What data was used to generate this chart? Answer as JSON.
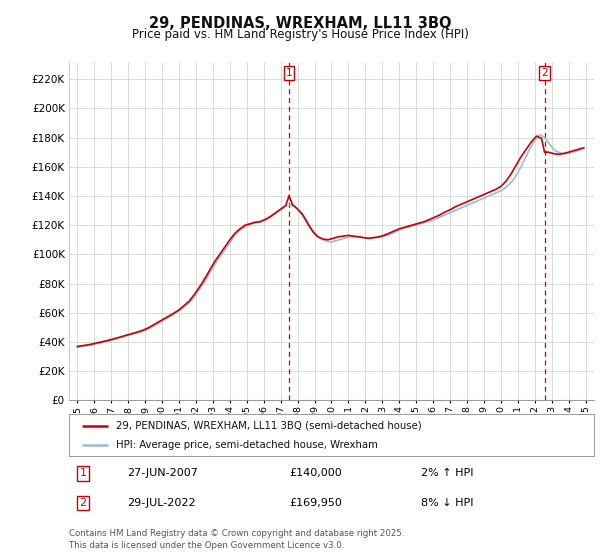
{
  "title": "29, PENDINAS, WREXHAM, LL11 3BQ",
  "subtitle": "Price paid vs. HM Land Registry's House Price Index (HPI)",
  "ylabel_ticks": [
    0,
    20000,
    40000,
    60000,
    80000,
    100000,
    120000,
    140000,
    160000,
    180000,
    200000,
    220000
  ],
  "ylabel_labels": [
    "£0",
    "£20K",
    "£40K",
    "£60K",
    "£80K",
    "£100K",
    "£120K",
    "£140K",
    "£160K",
    "£180K",
    "£200K",
    "£220K"
  ],
  "xlim": [
    1994.5,
    2025.5
  ],
  "ylim": [
    0,
    232000
  ],
  "background_color": "#ffffff",
  "grid_color": "#cccccc",
  "red_line_color": "#cc0000",
  "blue_line_color": "#99bbdd",
  "marker1_x": 2007.49,
  "marker2_x": 2022.58,
  "hpi_years": [
    1995.0,
    1995.3,
    1995.6,
    1995.9,
    1996.2,
    1996.5,
    1996.8,
    1997.1,
    1997.4,
    1997.7,
    1998.0,
    1998.3,
    1998.6,
    1998.9,
    1999.2,
    1999.5,
    1999.8,
    2000.1,
    2000.4,
    2000.7,
    2001.0,
    2001.3,
    2001.6,
    2001.9,
    2002.2,
    2002.5,
    2002.8,
    2003.1,
    2003.4,
    2003.7,
    2004.0,
    2004.3,
    2004.6,
    2004.9,
    2005.2,
    2005.5,
    2005.8,
    2006.1,
    2006.4,
    2006.7,
    2007.0,
    2007.3,
    2007.6,
    2007.9,
    2008.2,
    2008.5,
    2008.8,
    2009.1,
    2009.4,
    2009.7,
    2010.0,
    2010.3,
    2010.6,
    2010.9,
    2011.2,
    2011.5,
    2011.8,
    2012.1,
    2012.4,
    2012.7,
    2013.0,
    2013.3,
    2013.6,
    2013.9,
    2014.2,
    2014.5,
    2014.8,
    2015.1,
    2015.4,
    2015.7,
    2016.0,
    2016.3,
    2016.6,
    2016.9,
    2017.2,
    2017.5,
    2017.8,
    2018.1,
    2018.4,
    2018.7,
    2019.0,
    2019.3,
    2019.6,
    2019.9,
    2020.2,
    2020.5,
    2020.8,
    2021.1,
    2021.4,
    2021.7,
    2022.0,
    2022.3,
    2022.6,
    2022.9,
    2023.2,
    2023.5,
    2023.8,
    2024.1,
    2024.4,
    2024.7
  ],
  "hpi_values": [
    36500,
    37000,
    37500,
    38200,
    39000,
    39800,
    40600,
    41500,
    42500,
    43500,
    44500,
    45500,
    46500,
    47500,
    49000,
    51000,
    53000,
    55000,
    57000,
    59000,
    61500,
    64000,
    67000,
    71000,
    76000,
    81000,
    87000,
    93000,
    98000,
    103000,
    108000,
    113000,
    116500,
    119000,
    120500,
    121500,
    122000,
    123500,
    125500,
    128000,
    130500,
    133000,
    134000,
    132000,
    129000,
    124000,
    118000,
    113000,
    110500,
    109000,
    108500,
    109500,
    110500,
    111500,
    112000,
    112000,
    111500,
    111000,
    111000,
    111500,
    112000,
    113000,
    114500,
    116000,
    117500,
    118500,
    119500,
    120500,
    121500,
    122500,
    123500,
    125000,
    126500,
    128000,
    129500,
    131000,
    132500,
    134000,
    135500,
    137000,
    138500,
    140000,
    141500,
    143000,
    145000,
    148000,
    152000,
    158000,
    165000,
    172000,
    178000,
    182000,
    180000,
    175000,
    171000,
    169500,
    169000,
    169500,
    170500,
    171500
  ],
  "red_years": [
    1995.0,
    1995.3,
    1995.6,
    1995.9,
    1996.2,
    1996.5,
    1996.8,
    1997.1,
    1997.4,
    1997.7,
    1998.0,
    1998.3,
    1998.6,
    1998.9,
    1999.2,
    1999.5,
    1999.8,
    2000.1,
    2000.4,
    2000.7,
    2001.0,
    2001.3,
    2001.6,
    2001.9,
    2002.2,
    2002.5,
    2002.8,
    2003.1,
    2003.4,
    2003.7,
    2004.0,
    2004.3,
    2004.6,
    2004.9,
    2005.2,
    2005.5,
    2005.8,
    2006.1,
    2006.4,
    2006.7,
    2007.0,
    2007.3,
    2007.49,
    2007.7,
    2008.0,
    2008.3,
    2008.6,
    2008.9,
    2009.2,
    2009.5,
    2009.8,
    2010.1,
    2010.4,
    2010.7,
    2011.0,
    2011.3,
    2011.6,
    2011.9,
    2012.2,
    2012.5,
    2012.8,
    2013.1,
    2013.4,
    2013.7,
    2014.0,
    2014.3,
    2014.6,
    2014.9,
    2015.2,
    2015.5,
    2015.8,
    2016.1,
    2016.4,
    2016.7,
    2017.0,
    2017.3,
    2017.6,
    2017.9,
    2018.2,
    2018.5,
    2018.8,
    2019.1,
    2019.4,
    2019.7,
    2020.0,
    2020.3,
    2020.6,
    2020.9,
    2021.2,
    2021.5,
    2021.8,
    2022.1,
    2022.4,
    2022.58,
    2022.8,
    2023.1,
    2023.4,
    2023.7,
    2024.0,
    2024.3,
    2024.6,
    2024.9
  ],
  "red_values": [
    37000,
    37500,
    38000,
    38700,
    39500,
    40300,
    41100,
    42000,
    43000,
    44000,
    45000,
    46000,
    47000,
    48200,
    49800,
    51800,
    53800,
    55800,
    57800,
    59800,
    62000,
    65000,
    68000,
    72500,
    77500,
    83000,
    89000,
    95000,
    100000,
    105000,
    110000,
    114500,
    117500,
    120000,
    121000,
    122000,
    122500,
    124000,
    126000,
    128500,
    131000,
    133500,
    140000,
    134000,
    131000,
    127000,
    121000,
    115500,
    112000,
    110500,
    110000,
    111000,
    112000,
    112500,
    113000,
    112500,
    112000,
    111500,
    111000,
    111500,
    112000,
    113000,
    114500,
    116000,
    117500,
    118500,
    119500,
    120500,
    121500,
    122500,
    124000,
    125500,
    127000,
    129000,
    130500,
    132500,
    134000,
    135500,
    137000,
    138500,
    140000,
    141500,
    143000,
    144500,
    146500,
    150000,
    155000,
    161000,
    167000,
    172000,
    177000,
    181000,
    179500,
    169950,
    170000,
    169000,
    168500,
    169000,
    170000,
    171000,
    172000,
    173000
  ],
  "legend_red_label": "29, PENDINAS, WREXHAM, LL11 3BQ (semi-detached house)",
  "legend_blue_label": "HPI: Average price, semi-detached house, Wrexham",
  "annotation1_date": "27-JUN-2007",
  "annotation1_price": "£140,000",
  "annotation1_hpi": "2% ↑ HPI",
  "annotation2_date": "29-JUL-2022",
  "annotation2_price": "£169,950",
  "annotation2_hpi": "8% ↓ HPI",
  "footer": "Contains HM Land Registry data © Crown copyright and database right 2025.\nThis data is licensed under the Open Government Licence v3.0.",
  "xtick_years": [
    1995,
    1996,
    1997,
    1998,
    1999,
    2000,
    2001,
    2002,
    2003,
    2004,
    2005,
    2006,
    2007,
    2008,
    2009,
    2010,
    2011,
    2012,
    2013,
    2014,
    2015,
    2016,
    2017,
    2018,
    2019,
    2020,
    2021,
    2022,
    2023,
    2024,
    2025
  ]
}
